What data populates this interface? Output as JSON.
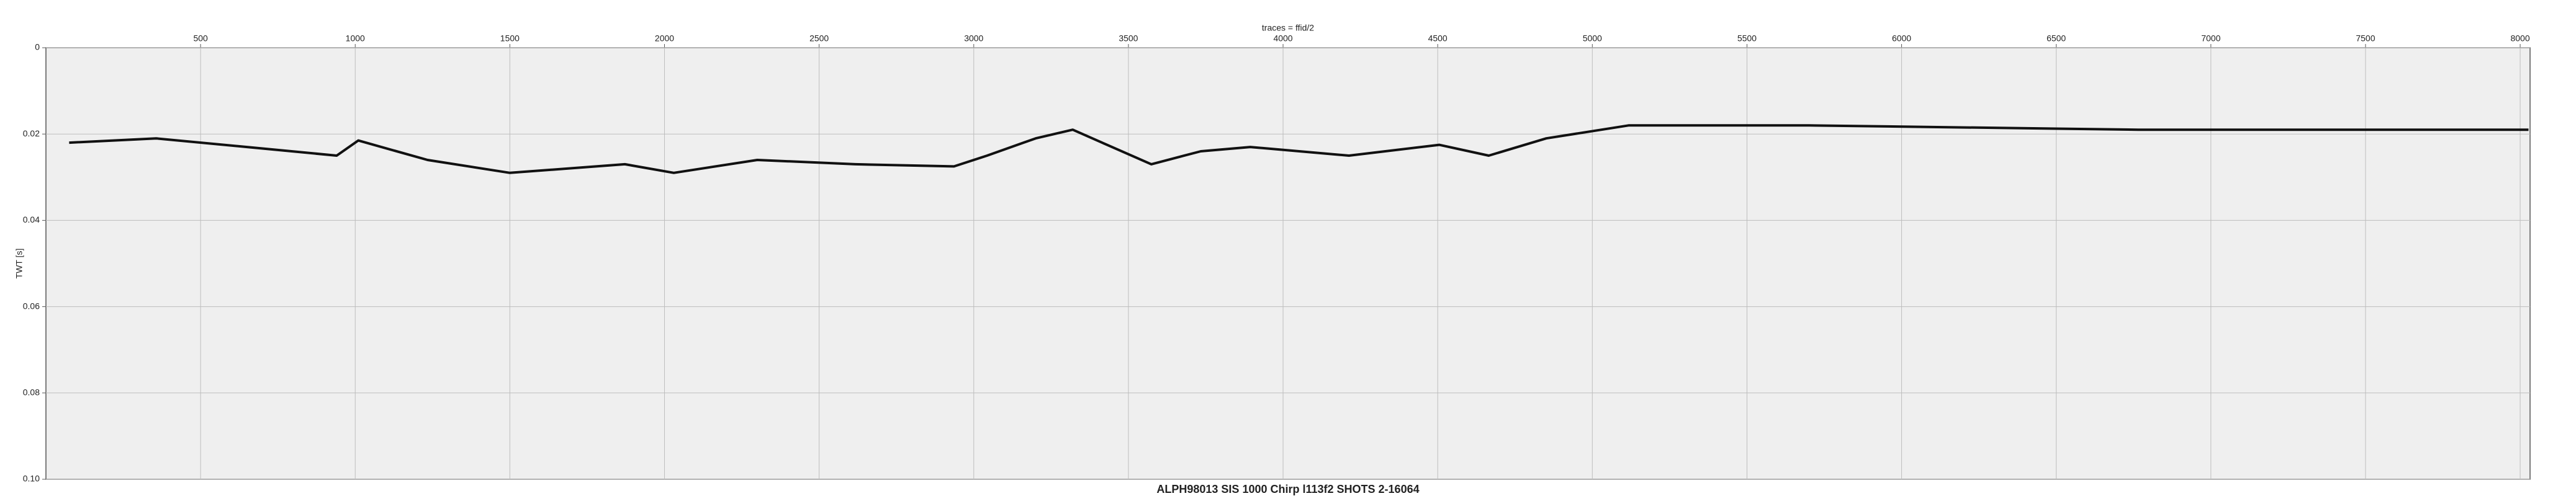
{
  "chart_data": {
    "type": "line",
    "title": "ALPH98013 SIS 1000 Chirp l113f2 SHOTS 2-16064",
    "x_label": "traces = ffid/2",
    "y_label": "TWT [s]",
    "x": [
      75,
      356,
      650,
      940,
      1010,
      1234,
      1500,
      1872,
      2030,
      2300,
      2617,
      2936,
      3043,
      3200,
      3320,
      3415,
      3574,
      3734,
      3894,
      4213,
      4505,
      4665,
      4851,
      5117,
      5702,
      6766,
      8027
    ],
    "values": [
      0.022,
      0.021,
      0.023,
      0.025,
      0.0215,
      0.026,
      0.029,
      0.027,
      0.029,
      0.026,
      0.027,
      0.0275,
      0.025,
      0.021,
      0.019,
      0.022,
      0.027,
      0.024,
      0.023,
      0.025,
      0.0225,
      0.025,
      0.021,
      0.018,
      0.018,
      0.019,
      0.019
    ],
    "color": "#111111",
    "xlim": [
      0,
      8032
    ],
    "xticks": [
      500,
      1000,
      1500,
      2000,
      2500,
      3000,
      3500,
      4000,
      4500,
      5000,
      5500,
      6000,
      6500,
      7000,
      7500,
      8000
    ],
    "ylim": [
      0,
      0.1
    ],
    "yticks": [
      0,
      0.02,
      0.04,
      0.06,
      0.08,
      {
        "value": 0.1,
        "label": "0.10"
      }
    ],
    "y_inverted": true,
    "grid": true
  }
}
